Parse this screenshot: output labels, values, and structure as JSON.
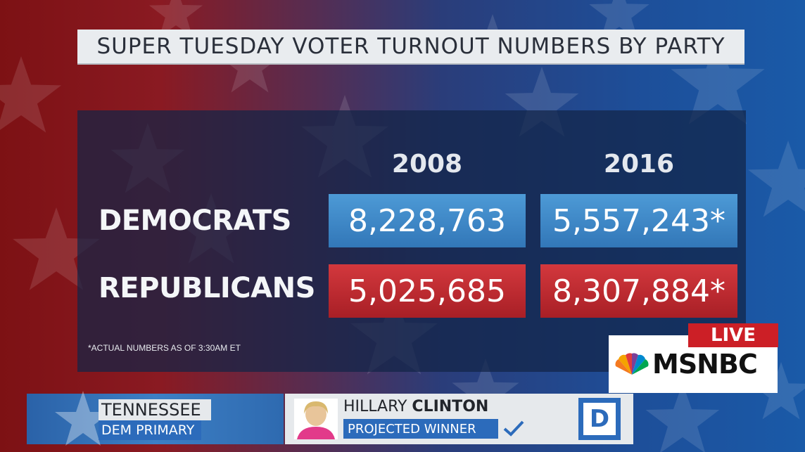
{
  "title": "SUPER TUESDAY VOTER TURNOUT NUMBERS BY PARTY",
  "table": {
    "years": [
      "2008",
      "2016"
    ],
    "rows": [
      {
        "label": "DEMOCRATS",
        "values": [
          "8,228,763",
          "5,557,243*"
        ]
      },
      {
        "label": "REPUBLICANS",
        "values": [
          "5,025,685",
          "8,307,884*"
        ]
      }
    ],
    "footnote": "*ACTUAL NUMBERS AS OF 3:30AM ET"
  },
  "network": {
    "live_label": "LIVE",
    "name": "MSNBC",
    "logo_icon": "peacock-icon"
  },
  "lower_third": {
    "state": "TENNESSEE",
    "race": "DEM PRIMARY",
    "candidate_first": "HILLARY",
    "candidate_last": "CLINTON",
    "status": "PROJECTED WINNER",
    "party": "D",
    "status_icon": "checkmark-icon"
  },
  "colors": {
    "democrat": "#3a84c6",
    "republican": "#c22b31",
    "live": "#cc1f26"
  }
}
